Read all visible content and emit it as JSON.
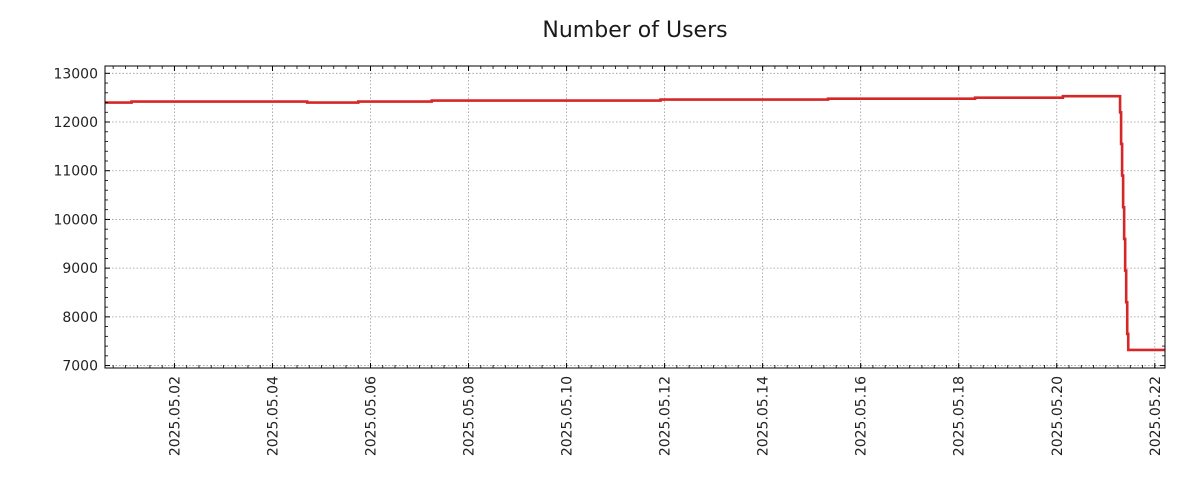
{
  "chart_data": {
    "type": "line",
    "title": "Number of Users",
    "xlabel": "",
    "ylabel": "",
    "x_axis_type": "date",
    "xlim": [
      "2025-04-30T14:00",
      "2025-05-22T05:00"
    ],
    "ylim": [
      6950,
      13150
    ],
    "grid": true,
    "x_ticks": [
      "2025.05.02",
      "2025.05.04",
      "2025.05.06",
      "2025.05.08",
      "2025.05.10",
      "2025.05.12",
      "2025.05.14",
      "2025.05.16",
      "2025.05.18",
      "2025.05.20",
      "2025.05.22"
    ],
    "y_ticks": [
      "7000",
      "8000",
      "9000",
      "10000",
      "11000",
      "12000",
      "13000"
    ],
    "series": [
      {
        "color": "#d62728",
        "step": true,
        "points": [
          [
            "2025-04-30T14:00",
            12400
          ],
          [
            "2025-05-01T03:00",
            12420
          ],
          [
            "2025-05-04T17:00",
            12400
          ],
          [
            "2025-05-05T18:00",
            12420
          ],
          [
            "2025-05-07T06:00",
            12440
          ],
          [
            "2025-05-11T22:00",
            12460
          ],
          [
            "2025-05-15T08:00",
            12480
          ],
          [
            "2025-05-18T08:00",
            12500
          ],
          [
            "2025-05-20T03:00",
            12530
          ],
          [
            "2025-05-21T07:00",
            12200
          ],
          [
            "2025-05-21T07:30",
            11550
          ],
          [
            "2025-05-21T08:00",
            10900
          ],
          [
            "2025-05-21T08:30",
            10250
          ],
          [
            "2025-05-21T09:00",
            9600
          ],
          [
            "2025-05-21T09:30",
            8950
          ],
          [
            "2025-05-21T10:00",
            8300
          ],
          [
            "2025-05-21T10:30",
            7650
          ],
          [
            "2025-05-21T11:00",
            7320
          ],
          [
            "2025-05-22T05:00",
            7320
          ]
        ]
      }
    ]
  }
}
